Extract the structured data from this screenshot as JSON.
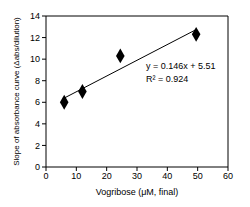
{
  "chart_data": {
    "type": "scatter",
    "x_label": "Vogribose (μM, final)",
    "y_label": "Slope of absorbance curve (Δabs/dilution)",
    "annotations": [
      "y = 0.146x + 5.51",
      "R² = 0.924"
    ],
    "x": [
      6,
      12,
      24.5,
      49.5
    ],
    "values": [
      6,
      7,
      10.3,
      12.3
    ],
    "color": "#000000",
    "marker": "diamond",
    "trendline": {
      "x": [
        6,
        49.5
      ],
      "values": [
        6.39,
        12.74
      ],
      "color": "#000000"
    },
    "xlim": [
      0,
      60
    ],
    "ylim": [
      0,
      14
    ],
    "xticks": [
      0,
      10,
      20,
      30,
      40,
      50,
      60
    ],
    "yticks": [
      0,
      2,
      4,
      6,
      8,
      10,
      12,
      14
    ],
    "grid": false
  }
}
